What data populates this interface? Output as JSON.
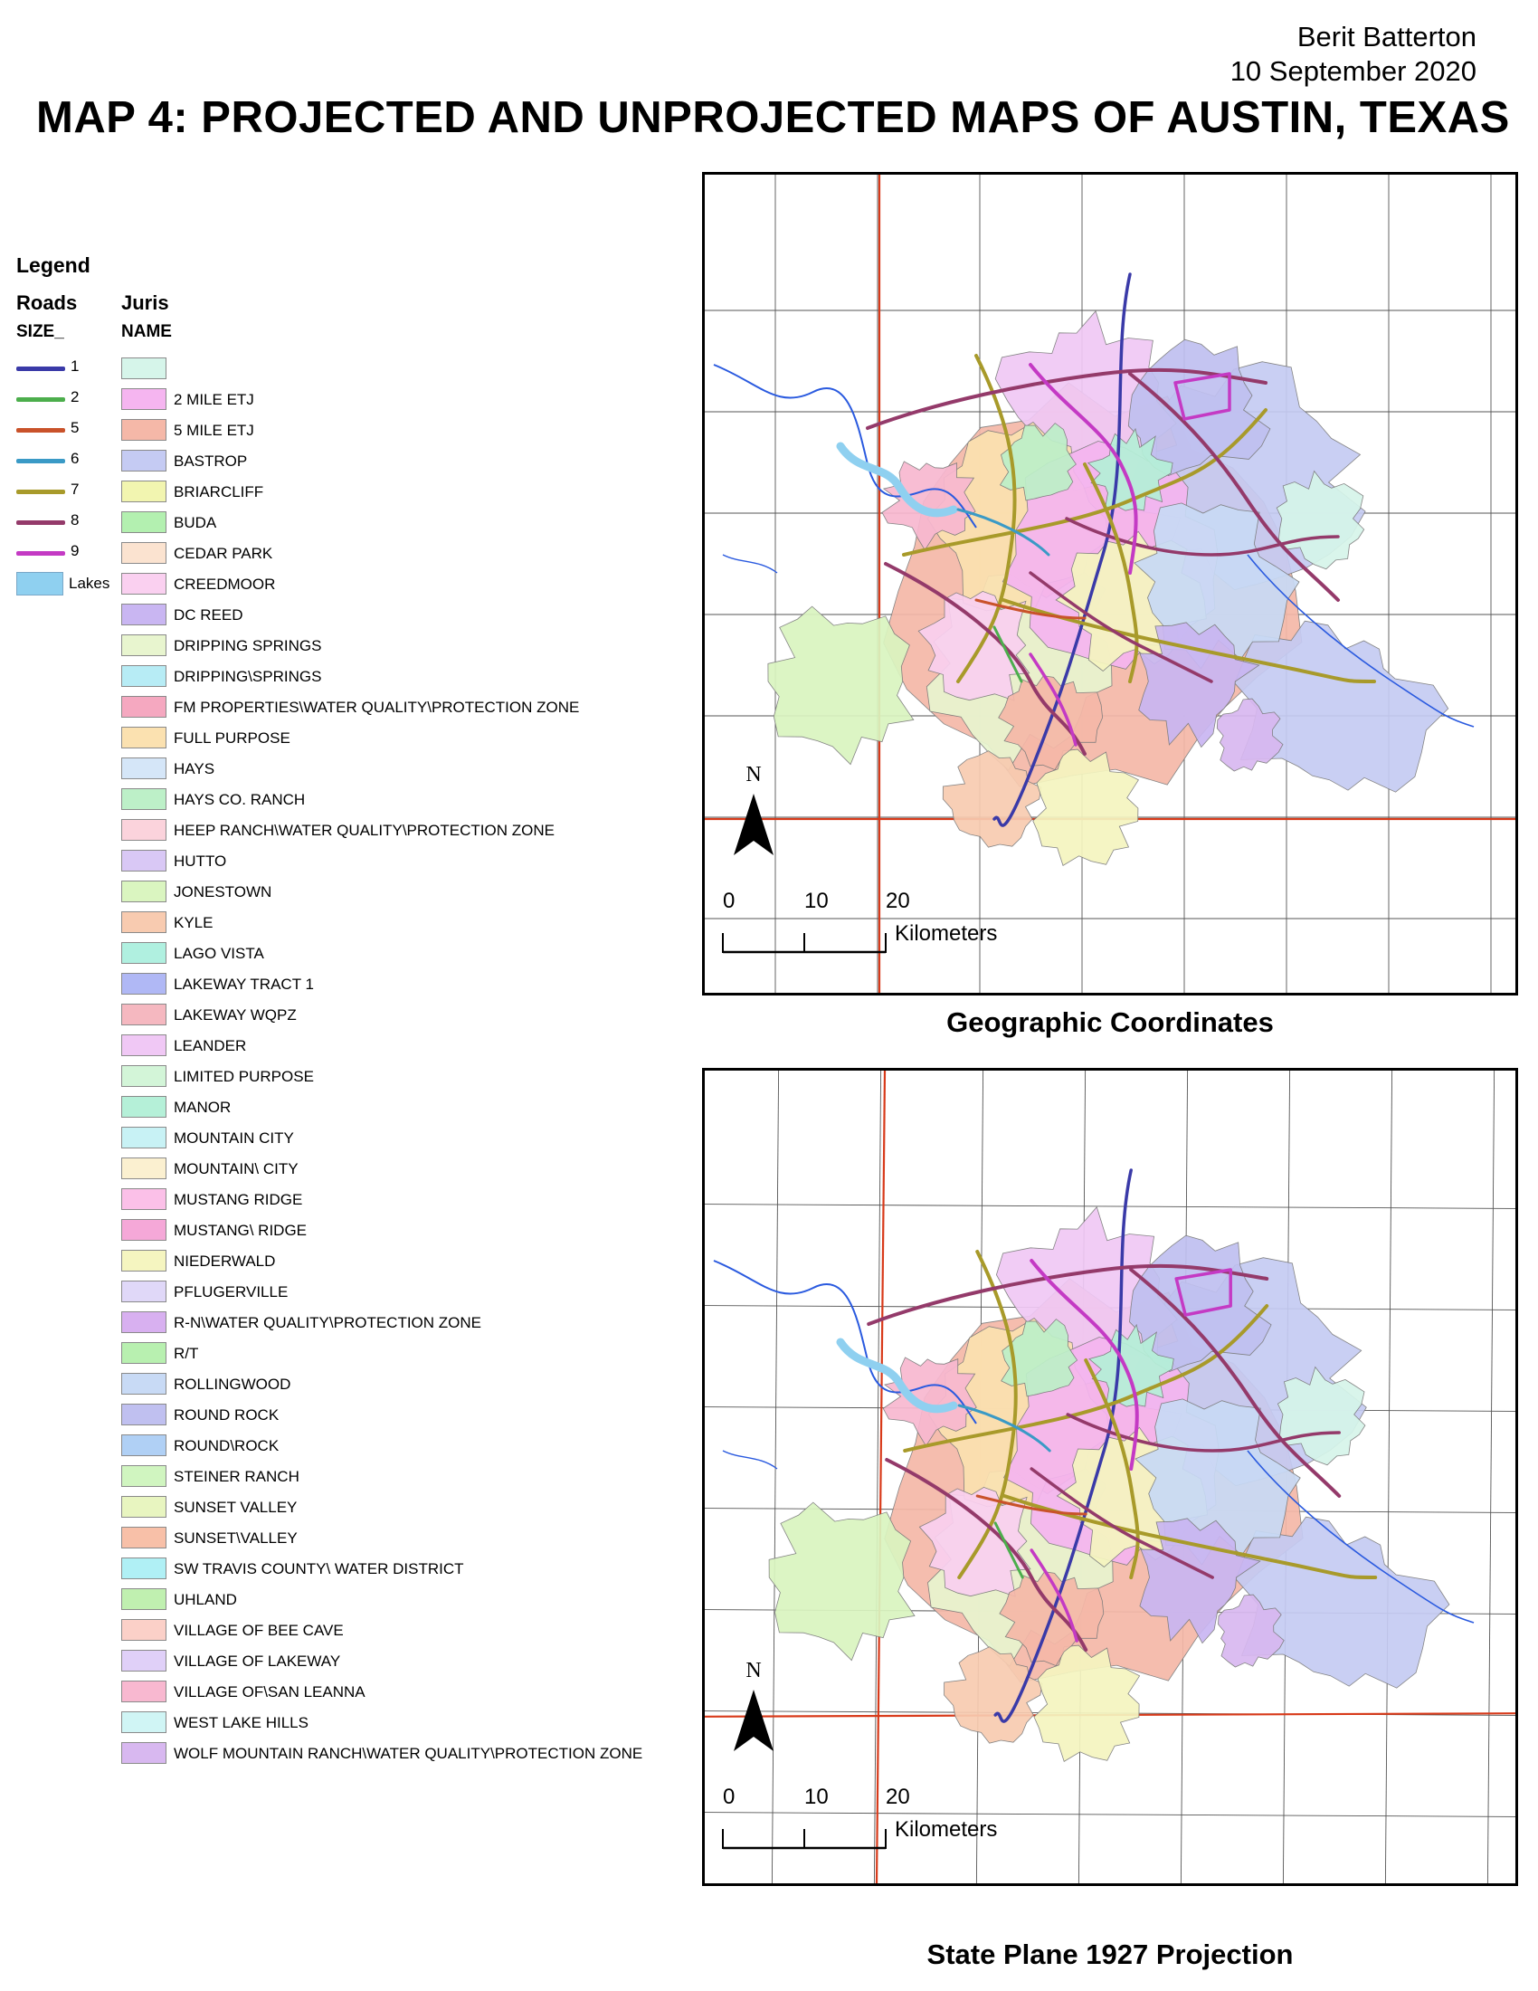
{
  "header": {
    "author": "Berit Batterton",
    "date": "10 September 2020",
    "title": "MAP 4: PROJECTED AND UNPROJECTED MAPS OF AUSTIN, TEXAS"
  },
  "legend": {
    "title": "Legend",
    "roads_heading": "Roads",
    "roads_field": "SIZE_",
    "juris_heading": "Juris",
    "juris_field": "NAME",
    "roads": [
      {
        "label": "1",
        "color": "#3a3aa8"
      },
      {
        "label": "2",
        "color": "#4cae4c"
      },
      {
        "label": "5",
        "color": "#c9522a"
      },
      {
        "label": "6",
        "color": "#3a9ac6"
      },
      {
        "label": "7",
        "color": "#a89a2a"
      },
      {
        "label": "8",
        "color": "#943a6a"
      },
      {
        "label": "9",
        "color": "#c43ac4"
      }
    ],
    "lakes": {
      "label": "Lakes",
      "color": "#8fd0f0"
    },
    "jurisdictions": [
      {
        "name": "",
        "color": "#d6f5ea"
      },
      {
        "name": "2 MILE ETJ",
        "color": "#f5b5f0"
      },
      {
        "name": "5 MILE ETJ",
        "color": "#f5b8a8"
      },
      {
        "name": "BASTROP",
        "color": "#c5cbf3"
      },
      {
        "name": "BRIARCLIFF",
        "color": "#f2f5b0"
      },
      {
        "name": "BUDA",
        "color": "#b3f0b0"
      },
      {
        "name": "CEDAR PARK",
        "color": "#fbe3d0"
      },
      {
        "name": "CREEDMOOR",
        "color": "#fad0f0"
      },
      {
        "name": "DC REED",
        "color": "#c9b6f2"
      },
      {
        "name": "DRIPPING SPRINGS",
        "color": "#e8f5cf"
      },
      {
        "name": "DRIPPING\\SPRINGS",
        "color": "#b7ecf5"
      },
      {
        "name": "FM PROPERTIES\\WATER QUALITY\\PROTECTION ZONE",
        "color": "#f5a8c0"
      },
      {
        "name": "FULL PURPOSE",
        "color": "#fbe1b0"
      },
      {
        "name": "HAYS",
        "color": "#d5e6f8"
      },
      {
        "name": "HAYS CO. RANCH",
        "color": "#bdf0c8"
      },
      {
        "name": "HEEP RANCH\\WATER QUALITY\\PROTECTION ZONE",
        "color": "#fbd3dc"
      },
      {
        "name": "HUTTO",
        "color": "#d9c8f5"
      },
      {
        "name": "JONESTOWN",
        "color": "#daf5c0"
      },
      {
        "name": "KYLE",
        "color": "#f8cbb0"
      },
      {
        "name": "LAGO VISTA",
        "color": "#b0f0e0"
      },
      {
        "name": "LAKEWAY TRACT 1",
        "color": "#b0b8f5"
      },
      {
        "name": "LAKEWAY WQPZ",
        "color": "#f5b8c0"
      },
      {
        "name": "LEANDER",
        "color": "#f0c8f5"
      },
      {
        "name": "LIMITED PURPOSE",
        "color": "#d3f5d8"
      },
      {
        "name": "MANOR",
        "color": "#b5f0d8"
      },
      {
        "name": "MOUNTAIN CITY",
        "color": "#c8f2f5"
      },
      {
        "name": "MOUNTAIN\\ CITY",
        "color": "#fbf0d0"
      },
      {
        "name": "MUSTANG RIDGE",
        "color": "#fbc0e8"
      },
      {
        "name": "MUSTANG\\ RIDGE",
        "color": "#f5a8d8"
      },
      {
        "name": "NIEDERWALD",
        "color": "#f5f5c0"
      },
      {
        "name": "PFLUGERVILLE",
        "color": "#e0d8f8"
      },
      {
        "name": "R-N\\WATER QUALITY\\PROTECTION ZONE",
        "color": "#d8b0f0"
      },
      {
        "name": "R/T",
        "color": "#b8f0b0"
      },
      {
        "name": "ROLLINGWOOD",
        "color": "#c8daf5"
      },
      {
        "name": "ROUND ROCK",
        "color": "#c0c0f0"
      },
      {
        "name": "ROUND\\ROCK",
        "color": "#b0d0f5"
      },
      {
        "name": "STEINER RANCH",
        "color": "#d0f5c0"
      },
      {
        "name": "SUNSET VALLEY",
        "color": "#e8f5c0"
      },
      {
        "name": "SUNSET\\VALLEY",
        "color": "#f8c0a8"
      },
      {
        "name": "SW TRAVIS COUNTY\\ WATER DISTRICT",
        "color": "#b0f0f5"
      },
      {
        "name": "UHLAND",
        "color": "#c0f0b0"
      },
      {
        "name": "VILLAGE OF BEE CAVE",
        "color": "#fbd0c8"
      },
      {
        "name": "VILLAGE OF LAKEWAY",
        "color": "#e0d0f8"
      },
      {
        "name": "VILLAGE OF\\SAN LEANNA",
        "color": "#f8b8d0"
      },
      {
        "name": "WEST LAKE HILLS",
        "color": "#d0f5f5"
      },
      {
        "name": "WOLF MOUNTAIN RANCH\\WATER QUALITY\\PROTECTION ZONE",
        "color": "#d8b8f0"
      }
    ]
  },
  "maps": [
    {
      "caption": "Geographic Coordinates",
      "north": "N",
      "scale": {
        "ticks": [
          "0",
          "10",
          "20"
        ],
        "unit": "Kilometers"
      }
    },
    {
      "caption": "State Plane 1927 Projection",
      "north": "N",
      "scale": {
        "ticks": [
          "0",
          "10",
          "20"
        ],
        "unit": "Kilometers"
      }
    }
  ]
}
